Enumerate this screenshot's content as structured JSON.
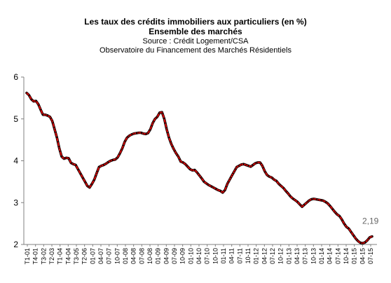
{
  "chart_data": {
    "type": "line",
    "title": "Les taux des crédits immobiliers aux particuliers (en %)",
    "subtitle": "Ensemble des marchés",
    "source": "Source : Crédit Logement/CSA",
    "observatory": "Observatoire du Financement des Marchés Résidentiels",
    "ylim": [
      2,
      6
    ],
    "yticks": [
      "2",
      "3",
      "4",
      "5",
      "6"
    ],
    "grid": false,
    "colors": {
      "line": "#000000",
      "line_overlay": "#d40000"
    },
    "end_label": "2,19",
    "x_tick_labels": [
      "T1-01",
      "T4-01",
      "T3-02",
      "T2-03",
      "T1-04",
      "T4-04",
      "T3-05",
      "T2-06",
      "01-07",
      "04-07",
      "07-07",
      "10-07",
      "01-08",
      "04-08",
      "07-08",
      "10-08",
      "01-09",
      "04-09",
      "07-09",
      "10-09",
      "01-10",
      "04-10",
      "07-10",
      "10-10",
      "01-11",
      "04-11",
      "07-11",
      "10-11",
      "01-12",
      "04-12",
      "07-12",
      "10-12",
      "01-13",
      "04-13",
      "07-13",
      "10-13",
      "01-14",
      "04-14",
      "07-14",
      "10-14",
      "01-15",
      "04-15",
      "07-15"
    ],
    "values": [
      5.62,
      5.57,
      5.47,
      5.42,
      5.43,
      5.35,
      5.22,
      5.1,
      5.1,
      5.08,
      5.05,
      4.95,
      4.75,
      4.55,
      4.3,
      4.1,
      4.05,
      4.07,
      4.06,
      3.95,
      3.92,
      3.9,
      3.8,
      3.7,
      3.6,
      3.5,
      3.4,
      3.36,
      3.45,
      3.55,
      3.7,
      3.85,
      3.88,
      3.9,
      3.93,
      3.97,
      4.0,
      4.02,
      4.03,
      4.08,
      4.18,
      4.3,
      4.45,
      4.55,
      4.6,
      4.63,
      4.65,
      4.66,
      4.67,
      4.67,
      4.65,
      4.64,
      4.66,
      4.75,
      4.9,
      5.0,
      5.05,
      5.15,
      5.16,
      5.0,
      4.75,
      4.55,
      4.4,
      4.28,
      4.18,
      4.1,
      3.98,
      3.96,
      3.92,
      3.86,
      3.8,
      3.77,
      3.78,
      3.72,
      3.65,
      3.58,
      3.5,
      3.46,
      3.42,
      3.39,
      3.36,
      3.33,
      3.3,
      3.28,
      3.24,
      3.3,
      3.45,
      3.55,
      3.65,
      3.75,
      3.85,
      3.88,
      3.91,
      3.92,
      3.9,
      3.88,
      3.86,
      3.9,
      3.94,
      3.96,
      3.96,
      3.88,
      3.75,
      3.66,
      3.62,
      3.6,
      3.55,
      3.52,
      3.45,
      3.4,
      3.35,
      3.28,
      3.22,
      3.15,
      3.1,
      3.06,
      3.02,
      2.96,
      2.9,
      2.95,
      3.0,
      3.05,
      3.08,
      3.09,
      3.08,
      3.07,
      3.06,
      3.05,
      3.02,
      2.98,
      2.92,
      2.85,
      2.78,
      2.72,
      2.68,
      2.6,
      2.5,
      2.42,
      2.38,
      2.3,
      2.22,
      2.14,
      2.08,
      2.04,
      2.03,
      2.05,
      2.1,
      2.17,
      2.19
    ]
  }
}
